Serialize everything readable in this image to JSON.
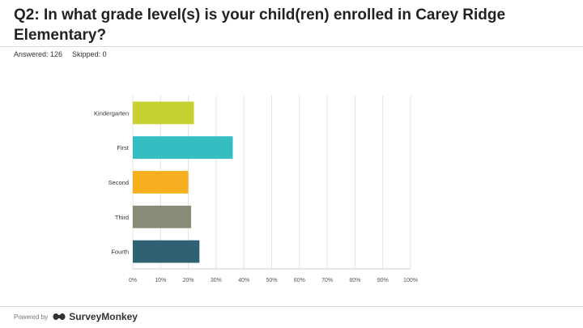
{
  "header": {
    "title": "Q2: In what grade level(s) is your child(ren) enrolled in Carey Ridge Elementary?",
    "answered": "Answered: 126",
    "skipped": "Skipped: 0"
  },
  "footer": {
    "powered_by": "Powered by",
    "brand": "SurveyMonkey",
    "brand_icon": "surveymonkey-logo-icon"
  },
  "chart_data": {
    "type": "bar",
    "orientation": "horizontal",
    "categories": [
      "Kindergarten",
      "First",
      "Second",
      "Third",
      "Fourth"
    ],
    "values": [
      22,
      36,
      20,
      21,
      24
    ],
    "colors": [
      "#c6d12f",
      "#35bec1",
      "#f6b01f",
      "#8a8a78",
      "#2e6272"
    ],
    "xlim": [
      0,
      100
    ],
    "xticks": [
      "0%",
      "10%",
      "20%",
      "30%",
      "40%",
      "50%",
      "60%",
      "70%",
      "80%",
      "90%",
      "100%"
    ],
    "grid": true,
    "legend": "none",
    "title": "",
    "xlabel": "",
    "ylabel": ""
  }
}
